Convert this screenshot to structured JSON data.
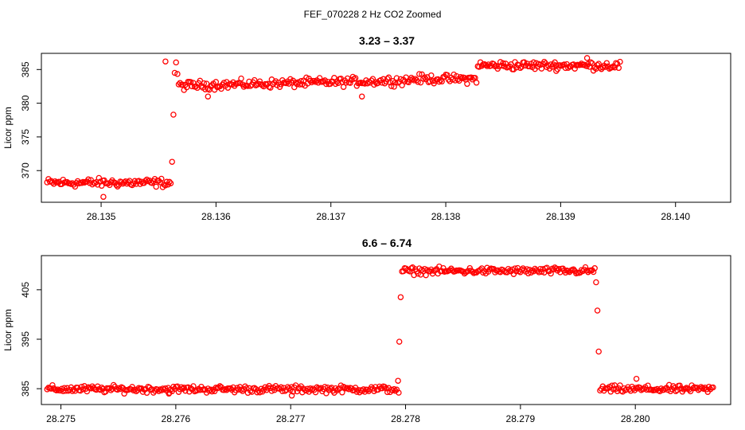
{
  "figure": {
    "title": "FEF_070228  2 Hz CO2 Zoomed"
  },
  "colors": {
    "points": "#ff0000",
    "axes": "#000000",
    "background": "#ffffff"
  },
  "chart_data": [
    {
      "type": "scatter",
      "title": "3.23 – 3.37",
      "xlabel": "",
      "ylabel": "Licor ppm",
      "xlim": [
        28.13448,
        28.14048
      ],
      "ylim": [
        365.3,
        387.4
      ],
      "xticks": [
        28.135,
        28.136,
        28.137,
        28.138,
        28.139,
        28.14
      ],
      "xtick_labels": [
        "28.135",
        "28.136",
        "28.137",
        "28.138",
        "28.139",
        "28.140"
      ],
      "yticks": [
        370,
        375,
        380,
        385
      ],
      "ytick_labels": [
        "370",
        "375",
        "380",
        "385"
      ],
      "grid": false,
      "marker": "open-circle",
      "series": [
        {
          "x_start": 28.13453,
          "x_step": 1.157e-05,
          "segments": [
            {
              "n": 94,
              "level": 368.2,
              "noise": 0.55
            },
            {
              "n": 1,
              "level": 371.3,
              "noise": 0
            },
            {
              "n": 1,
              "level": 378.3,
              "noise": 0
            },
            {
              "n": 3,
              "level": 384.8,
              "noise": 1.0
            },
            {
              "n": 175,
              "level": 382.6,
              "noise": 0.55,
              "end": 383.4
            },
            {
              "n": 50,
              "level": 383.6,
              "noise": 0.55
            },
            {
              "n": 108,
              "level": 385.6,
              "noise": 0.55
            }
          ],
          "outliers": [
            {
              "x": 28.13502,
              "y": 366.1
            },
            {
              "x": 28.13556,
              "y": 386.2
            },
            {
              "x": 28.13593,
              "y": 381.0
            },
            {
              "x": 28.13727,
              "y": 381.0
            },
            {
              "x": 28.13896,
              "y": 385.6
            },
            {
              "x": 28.13923,
              "y": 386.7
            }
          ]
        }
      ]
    },
    {
      "type": "scatter",
      "title": "6.6 – 6.74",
      "xlabel": "",
      "ylabel": "Licor ppm",
      "xlim": [
        28.27483,
        28.28083
      ],
      "ylim": [
        381.8,
        411.9
      ],
      "xticks": [
        28.275,
        28.276,
        28.277,
        28.278,
        28.279,
        28.28
      ],
      "xtick_labels": [
        "28.275",
        "28.276",
        "28.277",
        "28.278",
        "28.279",
        "28.280"
      ],
      "yticks": [
        385,
        395,
        405
      ],
      "ytick_labels": [
        "385",
        "395",
        "405"
      ],
      "grid": false,
      "marker": "open-circle",
      "series": [
        {
          "x_start": 28.27488,
          "x_step": 1.157e-05,
          "segments": [
            {
              "n": 264,
              "level": 384.9,
              "noise": 0.6
            },
            {
              "n": 1,
              "level": 386.6,
              "noise": 0
            },
            {
              "n": 1,
              "level": 394.5,
              "noise": 0
            },
            {
              "n": 1,
              "level": 403.5,
              "noise": 0
            },
            {
              "n": 146,
              "level": 408.8,
              "noise": 0.6
            },
            {
              "n": 1,
              "level": 406.5,
              "noise": 0
            },
            {
              "n": 1,
              "level": 400.8,
              "noise": 0
            },
            {
              "n": 1,
              "level": 392.5,
              "noise": 0
            },
            {
              "n": 86,
              "level": 384.9,
              "noise": 0.6
            }
          ],
          "outliers": [
            {
              "x": 28.27594,
              "y": 384.0
            },
            {
              "x": 28.27701,
              "y": 383.6
            },
            {
              "x": 28.27794,
              "y": 384.2
            },
            {
              "x": 28.28001,
              "y": 387.0
            }
          ]
        }
      ]
    }
  ]
}
